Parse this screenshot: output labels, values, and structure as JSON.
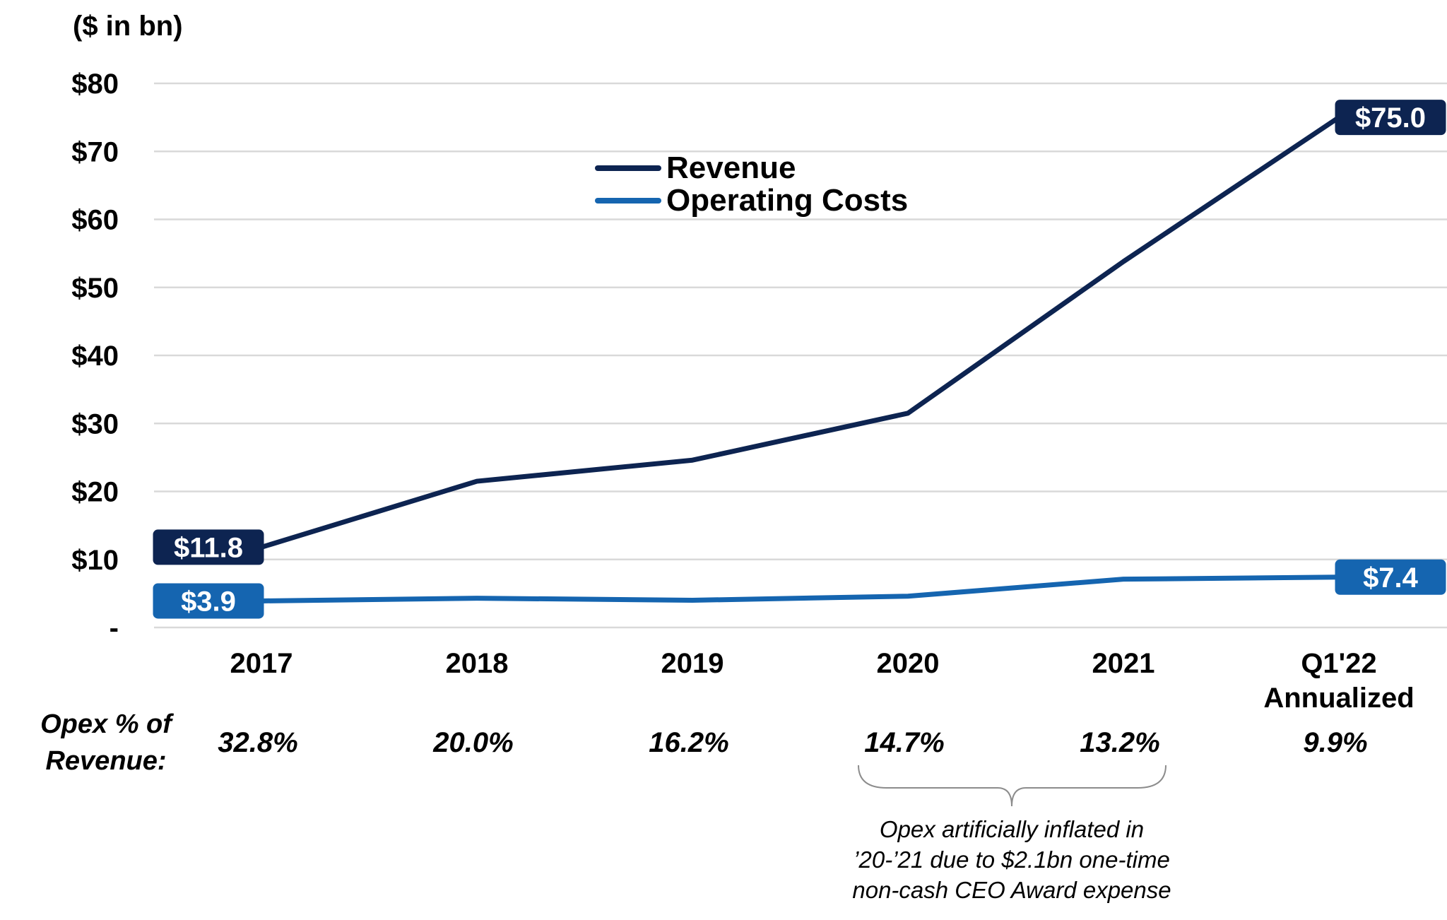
{
  "chart_data": {
    "type": "line",
    "unit_label": "($ in bn)",
    "categories": [
      "2017",
      "2018",
      "2019",
      "2020",
      "2021",
      "Q1'22 Annualized"
    ],
    "category_lines": [
      [
        "2017"
      ],
      [
        "2018"
      ],
      [
        "2019"
      ],
      [
        "2020"
      ],
      [
        "2021"
      ],
      [
        "Q1'22",
        "Annualized"
      ]
    ],
    "ylim": [
      0,
      80
    ],
    "y_ticks": [
      {
        "value": 0,
        "label": "-"
      },
      {
        "value": 10,
        "label": "$10"
      },
      {
        "value": 20,
        "label": "$20"
      },
      {
        "value": 30,
        "label": "$30"
      },
      {
        "value": 40,
        "label": "$40"
      },
      {
        "value": 50,
        "label": "$50"
      },
      {
        "value": 60,
        "label": "$60"
      },
      {
        "value": 70,
        "label": "$70"
      },
      {
        "value": 80,
        "label": "$80"
      }
    ],
    "grid": true,
    "legend_position": "top-center",
    "series": [
      {
        "name": "Revenue",
        "color": "#0d2451",
        "values": [
          11.8,
          21.5,
          24.6,
          31.5,
          53.8,
          75.0
        ],
        "point_labels": [
          {
            "index": 0,
            "text": "$11.8"
          },
          {
            "index": 5,
            "text": "$75.0"
          }
        ]
      },
      {
        "name": "Operating Costs",
        "color": "#1565b0",
        "values": [
          3.9,
          4.3,
          4.0,
          4.6,
          7.1,
          7.4
        ],
        "point_labels": [
          {
            "index": 0,
            "text": "$3.9"
          },
          {
            "index": 5,
            "text": "$7.4"
          }
        ]
      }
    ],
    "opex_row": {
      "title_lines": [
        "Opex % of",
        "Revenue:"
      ],
      "values": [
        "32.8%",
        "20.0%",
        "16.2%",
        "14.7%",
        "13.2%",
        "9.9%"
      ]
    },
    "annotation": {
      "spans": [
        "2020",
        "2021"
      ],
      "lines": [
        "Opex artificially inflated in",
        "’20-’21 due to $2.1bn one-time",
        "non-cash CEO Award expense"
      ]
    }
  }
}
